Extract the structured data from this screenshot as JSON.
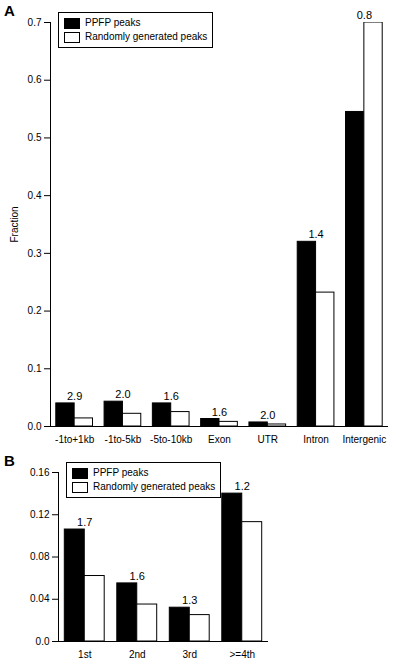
{
  "chart_data": [
    {
      "type": "bar",
      "title": "A",
      "ylabel": "Fraction",
      "categories": [
        "-1to+1kb",
        "-1to-5kb",
        "-5to-10kb",
        "Exon",
        "UTR",
        "Intron",
        "Intergenic"
      ],
      "series": [
        {
          "name": "PPFP peaks",
          "color": "#000000",
          "values": [
            0.04,
            0.043,
            0.04,
            0.013,
            0.007,
            0.32,
            0.545
          ]
        },
        {
          "name": "Randomly generated peaks",
          "color": "#ffffff",
          "values": [
            0.014,
            0.022,
            0.025,
            0.008,
            0.0035,
            0.232,
            0.7
          ]
        }
      ],
      "annotations": [
        {
          "category": "-1to+1kb",
          "text": "2.9"
        },
        {
          "category": "-1to-5kb",
          "text": "2.0"
        },
        {
          "category": "-5to-10kb",
          "text": "1.6"
        },
        {
          "category": "Exon",
          "text": "1.6"
        },
        {
          "category": "UTR",
          "text": "2.0"
        },
        {
          "category": "Intron",
          "text": "1.4"
        },
        {
          "category": "Intergenic",
          "text": "0.8"
        }
      ],
      "ylim": [
        0,
        0.7
      ],
      "yticks": [
        {
          "value": 0,
          "label": "0.0"
        },
        0.1,
        0.2,
        0.3,
        0.4,
        0.5,
        0.6,
        0.7
      ],
      "legend": "top-left"
    },
    {
      "type": "bar",
      "title": "B",
      "categories": [
        "1st",
        "2nd",
        "3rd",
        ">=4th"
      ],
      "series": [
        {
          "name": "PPFP peaks",
          "color": "#000000",
          "values": [
            0.106,
            0.055,
            0.032,
            0.14
          ]
        },
        {
          "name": "Randomly generated peaks",
          "color": "#ffffff",
          "values": [
            0.062,
            0.035,
            0.025,
            0.113
          ]
        }
      ],
      "annotations": [
        {
          "category": "1st",
          "text": "1.7"
        },
        {
          "category": "2nd",
          "text": "1.6"
        },
        {
          "category": "3rd",
          "text": "1.3"
        },
        {
          "category": ">=4th",
          "text": "1.2"
        }
      ],
      "ylim": [
        0,
        0.16
      ],
      "yticks": [
        {
          "value": 0,
          "label": "0.0"
        },
        0.04,
        0.08,
        0.12,
        0.16
      ],
      "legend": "top-left"
    }
  ]
}
